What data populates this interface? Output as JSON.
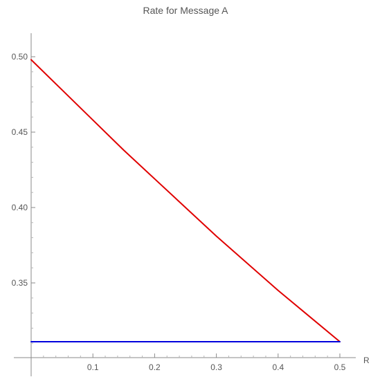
{
  "chart_data": {
    "type": "line",
    "title": "Rate for Message A",
    "xlabel": "R",
    "ylabel": "",
    "xlim": [
      0,
      0.5
    ],
    "ylim": [
      0.31,
      0.5
    ],
    "x_ticks": [
      0.1,
      0.2,
      0.3,
      0.4,
      0.5
    ],
    "x_tick_labels": [
      "0.1",
      "0.2",
      "0.3",
      "0.4",
      "0.5"
    ],
    "y_ticks": [
      0.35,
      0.4,
      0.45,
      0.5
    ],
    "y_tick_labels": [
      "0.35",
      "0.40",
      "0.45",
      "0.50"
    ],
    "grid": false,
    "legend": "none",
    "series": [
      {
        "color": "#e00000",
        "x": [
          0,
          0.05,
          0.1,
          0.15,
          0.2,
          0.25,
          0.3,
          0.35,
          0.4,
          0.45,
          0.5
        ],
        "y": [
          0.498,
          0.478,
          0.458,
          0.438,
          0.419,
          0.4,
          0.381,
          0.363,
          0.345,
          0.328,
          0.311
        ]
      },
      {
        "color": "#0000dd",
        "x": [
          0,
          0.5
        ],
        "y": [
          0.311,
          0.311
        ]
      }
    ]
  }
}
